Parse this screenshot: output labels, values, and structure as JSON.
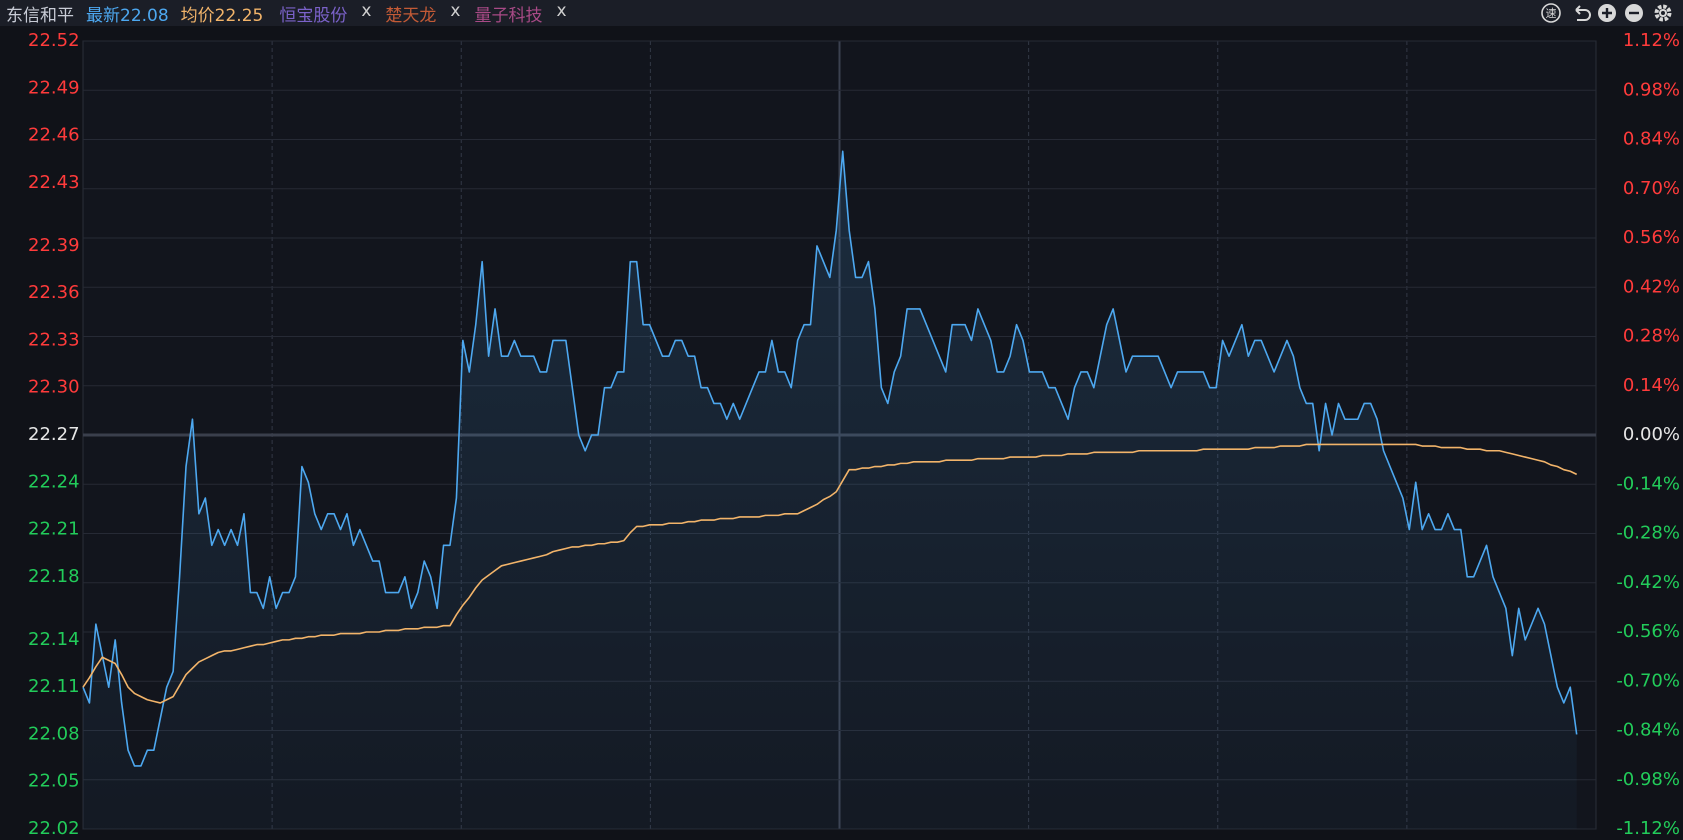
{
  "header": {
    "stock": "东信和平",
    "latest": "最新22.08",
    "average": "均价22.25",
    "tabs": [
      {
        "name": "恒宝股份",
        "close": "x",
        "color": "#7b62c9"
      },
      {
        "name": "楚天龙",
        "close": "x",
        "color": "#c25a36"
      },
      {
        "name": "量子科技",
        "close": "x",
        "color": "#a84a86"
      }
    ],
    "icon_label": "速"
  },
  "chart_data": {
    "type": "line",
    "ylim": [
      22.02,
      22.52
    ],
    "yticks": [
      22.52,
      22.49,
      22.46,
      22.43,
      22.39,
      22.36,
      22.33,
      {
        "value": 22.3,
        "label": "22.30"
      },
      22.27,
      22.24,
      22.21,
      22.18,
      22.14,
      22.11,
      22.08,
      22.05,
      22.02
    ],
    "y2lim": [
      -1.12,
      1.12
    ],
    "y2ticks": [
      {
        "value": 1.12,
        "label": "1.12%"
      },
      {
        "value": 0.98,
        "label": "0.98%"
      },
      {
        "value": 0.84,
        "label": "0.84%"
      },
      {
        "value": 0.7,
        "label": "0.70%"
      },
      {
        "value": 0.56,
        "label": "0.56%"
      },
      {
        "value": 0.42,
        "label": "0.42%"
      },
      {
        "value": 0.28,
        "label": "0.28%"
      },
      {
        "value": 0.14,
        "label": "0.14%"
      },
      {
        "value": 0,
        "label": "0.00%"
      },
      {
        "value": -0.14,
        "label": "-0.14%"
      },
      {
        "value": -0.28,
        "label": "-0.28%"
      },
      {
        "value": -0.42,
        "label": "-0.42%"
      },
      {
        "value": -0.56,
        "label": "-0.56%"
      },
      {
        "value": -0.7,
        "label": "-0.70%"
      },
      {
        "value": -0.84,
        "label": "-0.84%"
      },
      {
        "value": -0.98,
        "label": "-0.98%"
      },
      {
        "value": -1.12,
        "label": "-1.12%"
      }
    ],
    "grid": true,
    "up_color": "#ff3b3b",
    "down_color": "#22cc5a",
    "flat_color": "#e6e6e6",
    "series": [
      {
        "color": "#4da8f0",
        "area": true,
        "values": [
          22.11,
          22.1,
          22.15,
          22.13,
          22.11,
          22.14,
          22.1,
          22.07,
          22.06,
          22.06,
          22.07,
          22.07,
          22.09,
          22.11,
          22.12,
          22.18,
          22.25,
          22.28,
          22.22,
          22.23,
          22.2,
          22.21,
          22.2,
          22.21,
          22.2,
          22.22,
          22.17,
          22.17,
          22.16,
          22.18,
          22.16,
          22.17,
          22.17,
          22.18,
          22.25,
          22.24,
          22.22,
          22.21,
          22.22,
          22.22,
          22.21,
          22.22,
          22.2,
          22.21,
          22.2,
          22.19,
          22.19,
          22.17,
          22.17,
          22.17,
          22.18,
          22.16,
          22.17,
          22.19,
          22.18,
          22.16,
          22.2,
          22.2,
          22.23,
          22.33,
          22.31,
          22.34,
          22.38,
          22.32,
          22.35,
          22.32,
          22.32,
          22.33,
          22.32,
          22.32,
          22.32,
          22.31,
          22.31,
          22.33,
          22.33,
          22.33,
          22.3,
          22.27,
          22.26,
          22.27,
          22.27,
          22.3,
          22.3,
          22.31,
          22.31,
          22.38,
          22.38,
          22.34,
          22.34,
          22.33,
          22.32,
          22.32,
          22.33,
          22.33,
          22.32,
          22.32,
          22.3,
          22.3,
          22.29,
          22.29,
          22.28,
          22.29,
          22.28,
          22.29,
          22.3,
          22.31,
          22.31,
          22.33,
          22.31,
          22.31,
          22.3,
          22.33,
          22.34,
          22.34,
          22.39,
          22.38,
          22.37,
          22.4,
          22.45,
          22.4,
          22.37,
          22.37,
          22.38,
          22.35,
          22.3,
          22.29,
          22.31,
          22.32,
          22.35,
          22.35,
          22.35,
          22.34,
          22.33,
          22.32,
          22.31,
          22.34,
          22.34,
          22.34,
          22.33,
          22.35,
          22.34,
          22.33,
          22.31,
          22.31,
          22.32,
          22.34,
          22.33,
          22.31,
          22.31,
          22.31,
          22.3,
          22.3,
          22.29,
          22.28,
          22.3,
          22.31,
          22.31,
          22.3,
          22.32,
          22.34,
          22.35,
          22.33,
          22.31,
          22.32,
          22.32,
          22.32,
          22.32,
          22.32,
          22.31,
          22.3,
          22.31,
          22.31,
          22.31,
          22.31,
          22.31,
          22.3,
          22.3,
          22.33,
          22.32,
          22.33,
          22.34,
          22.32,
          22.33,
          22.33,
          22.32,
          22.31,
          22.32,
          22.33,
          22.32,
          22.3,
          22.29,
          22.29,
          22.26,
          22.29,
          22.27,
          22.29,
          22.28,
          22.28,
          22.28,
          22.29,
          22.29,
          22.28,
          22.26,
          22.25,
          22.24,
          22.23,
          22.21,
          22.24,
          22.21,
          22.22,
          22.21,
          22.21,
          22.22,
          22.21,
          22.21,
          22.18,
          22.18,
          22.19,
          22.2,
          22.18,
          22.17,
          22.16,
          22.13,
          22.16,
          22.14,
          22.15,
          22.16,
          22.15,
          22.13,
          22.11,
          22.1,
          22.11,
          22.08,
          null,
          null,
          null
        ]
      },
      {
        "color": "#f2b46a",
        "area": false,
        "values": [
          22.11,
          22.116,
          22.123,
          22.129,
          22.127,
          22.125,
          22.118,
          22.11,
          22.106,
          22.104,
          22.102,
          22.101,
          22.1,
          22.102,
          22.104,
          22.111,
          22.118,
          22.122,
          22.126,
          22.128,
          22.13,
          22.132,
          22.133,
          22.133,
          22.134,
          22.135,
          22.136,
          22.137,
          22.137,
          22.138,
          22.139,
          22.14,
          22.14,
          22.141,
          22.141,
          22.142,
          22.142,
          22.143,
          22.143,
          22.143,
          22.144,
          22.144,
          22.144,
          22.144,
          22.145,
          22.145,
          22.145,
          22.146,
          22.146,
          22.146,
          22.147,
          22.147,
          22.147,
          22.148,
          22.148,
          22.148,
          22.149,
          22.149,
          22.156,
          22.162,
          22.167,
          22.173,
          22.178,
          22.181,
          22.184,
          22.187,
          22.188,
          22.189,
          22.19,
          22.191,
          22.192,
          22.193,
          22.194,
          22.196,
          22.197,
          22.198,
          22.199,
          22.199,
          22.2,
          22.2,
          22.201,
          22.201,
          22.202,
          22.202,
          22.203,
          22.208,
          22.212,
          22.212,
          22.213,
          22.213,
          22.213,
          22.214,
          22.214,
          22.214,
          22.215,
          22.215,
          22.216,
          22.216,
          22.216,
          22.217,
          22.217,
          22.217,
          22.218,
          22.218,
          22.218,
          22.218,
          22.219,
          22.219,
          22.219,
          22.22,
          22.22,
          22.22,
          22.222,
          22.224,
          22.226,
          22.229,
          22.231,
          22.234,
          22.241,
          22.248,
          22.248,
          22.249,
          22.249,
          22.25,
          22.25,
          22.251,
          22.251,
          22.252,
          22.252,
          22.253,
          22.253,
          22.253,
          22.253,
          22.253,
          22.254,
          22.254,
          22.254,
          22.254,
          22.254,
          22.255,
          22.255,
          22.255,
          22.255,
          22.255,
          22.256,
          22.256,
          22.256,
          22.256,
          22.256,
          22.257,
          22.257,
          22.257,
          22.257,
          22.258,
          22.258,
          22.258,
          22.258,
          22.259,
          22.259,
          22.259,
          22.259,
          22.259,
          22.259,
          22.259,
          22.26,
          22.26,
          22.26,
          22.26,
          22.26,
          22.26,
          22.26,
          22.26,
          22.26,
          22.26,
          22.261,
          22.261,
          22.261,
          22.261,
          22.261,
          22.261,
          22.261,
          22.261,
          22.262,
          22.262,
          22.262,
          22.262,
          22.263,
          22.263,
          22.263,
          22.263,
          22.264,
          22.264,
          22.264,
          22.264,
          22.264,
          22.264,
          22.264,
          22.264,
          22.264,
          22.264,
          22.264,
          22.264,
          22.264,
          22.264,
          22.264,
          22.264,
          22.264,
          22.264,
          22.263,
          22.263,
          22.263,
          22.262,
          22.262,
          22.262,
          22.262,
          22.261,
          22.261,
          22.261,
          22.26,
          22.26,
          22.26,
          22.259,
          22.258,
          22.257,
          22.256,
          22.255,
          22.254,
          22.253,
          22.251,
          22.25,
          22.248,
          22.247,
          22.245,
          null,
          null,
          null
        ]
      }
    ]
  }
}
